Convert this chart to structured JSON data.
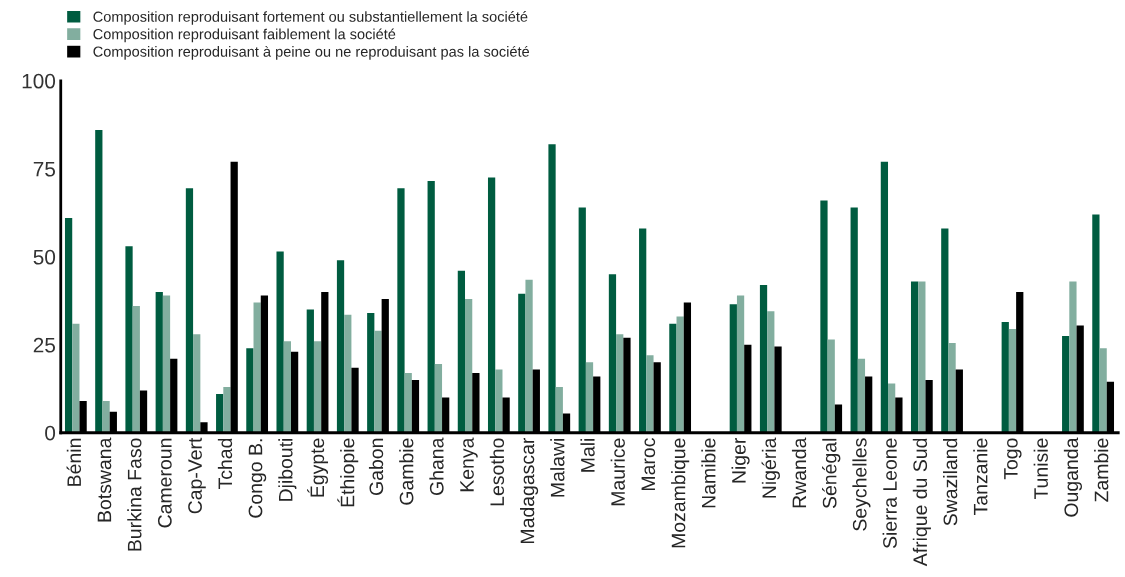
{
  "chart_data": {
    "type": "bar",
    "categories": [
      "Bénin",
      "Botswana",
      "Burkina Faso",
      "Cameroun",
      "Cap-Vert",
      "Tchad",
      "Congo B.",
      "Djibouti",
      "Égypte",
      "Éthiopie",
      "Gabon",
      "Gambie",
      "Ghana",
      "Kenya",
      "Lesotho",
      "Madagascar",
      "Malawi",
      "Mali",
      "Maurice",
      "Maroc",
      "Mozambique",
      "Namibie",
      "Niger",
      "Nigéria",
      "Rwanda",
      "Sénégal",
      "Seychelles",
      "Sierra Leone",
      "Afrique du Sud",
      "Swaziland",
      "Tanzanie",
      "Togo",
      "Tunisie",
      "Ouganda",
      "Zambie"
    ],
    "series": [
      {
        "name": "Composition reproduisant fortement ou substantiellement la société",
        "color": "#005c40",
        "values": [
          61,
          86,
          53,
          40,
          69.5,
          11,
          24,
          51.5,
          35,
          49,
          34,
          69.5,
          71.5,
          46,
          72.5,
          39.5,
          82,
          64,
          45,
          58,
          31,
          0,
          36.5,
          42,
          0,
          66,
          64,
          77,
          43,
          58,
          0,
          31.5,
          0,
          27.5,
          62
        ]
      },
      {
        "name": "Composition reproduisant faiblement la société",
        "color": "#82ae9f",
        "values": [
          31,
          9,
          36,
          39,
          28,
          13,
          37,
          26,
          26,
          33.5,
          29,
          17,
          19.5,
          38,
          18,
          43.5,
          13,
          20,
          28,
          22,
          33,
          0,
          39,
          34.5,
          0,
          26.5,
          21,
          14,
          43,
          25.5,
          0,
          29.5,
          0,
          43,
          24
        ]
      },
      {
        "name": "Composition reproduisant à peine ou ne reproduisant pas la société",
        "color": "#000000",
        "values": [
          9,
          6,
          12,
          21,
          3,
          77,
          39,
          23,
          40,
          18.5,
          38,
          15,
          10,
          17,
          10,
          18,
          5.5,
          16,
          27,
          20,
          37,
          0,
          25,
          24.5,
          0,
          8,
          16,
          10,
          15,
          18,
          0,
          40,
          0,
          30.5,
          14.5
        ]
      }
    ],
    "ylim": [
      0,
      100
    ],
    "yticks": [
      0,
      25,
      50,
      75,
      100
    ],
    "grid": false,
    "legend": "top left"
  }
}
